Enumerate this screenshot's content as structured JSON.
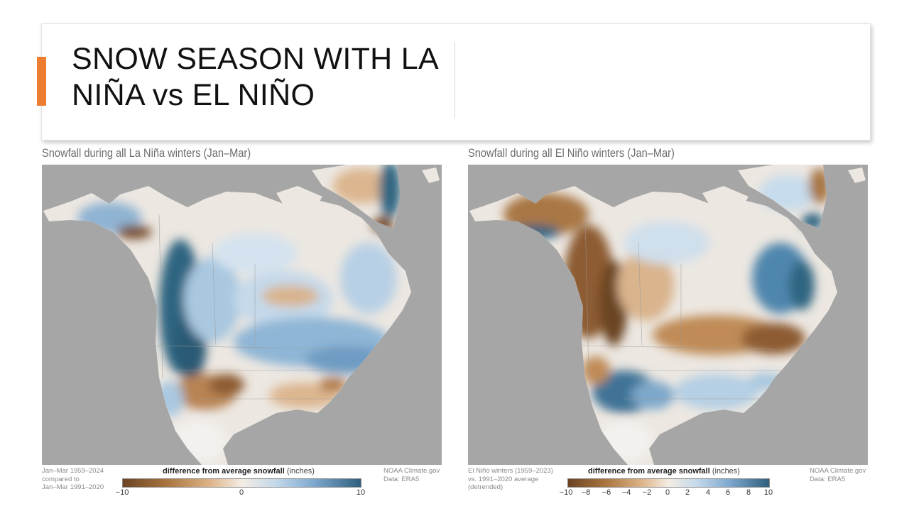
{
  "slide": {
    "title_line1": "SNOW SEASON WITH LA",
    "title_line2": "NIÑA vs EL NIÑO",
    "accent_color": "#ed7d31"
  },
  "panels": [
    {
      "title": "Snowfall during all La Niña winters (Jan–Mar)",
      "footnote_left": "Jan–Mar 1959–2024\ncompared to\nJan–Mar 1991–2020",
      "legend_title_bold": "difference from average snowfall",
      "legend_title_unit": "(inches)",
      "ticks": [
        "−10",
        "0",
        "10"
      ],
      "credit_line1": "NOAA Climate.gov",
      "credit_line2": "Data: ERA5"
    },
    {
      "title": "Snowfall during all El Niño winters (Jan–Mar)",
      "footnote_left": "El Niño winters (1959–2023)\nvs. 1991–2020 average\n(detrended)",
      "legend_title_bold": "difference from average snowfall",
      "legend_title_unit": "(inches)",
      "ticks": [
        "−10",
        "−8",
        "−6",
        "−4",
        "−2",
        "0",
        "2",
        "4",
        "6",
        "8",
        "10"
      ],
      "credit_line1": "NOAA Climate.gov",
      "credit_line2": "Data: ERA5"
    }
  ],
  "colors": {
    "ocean": "#a6a6a6",
    "neutral": "#eeeae5",
    "snow_more_dark": "#2f5f7d",
    "snow_more": "#9cc0dd",
    "snow_less": "#c99660",
    "snow_less_dark": "#6b4424"
  }
}
